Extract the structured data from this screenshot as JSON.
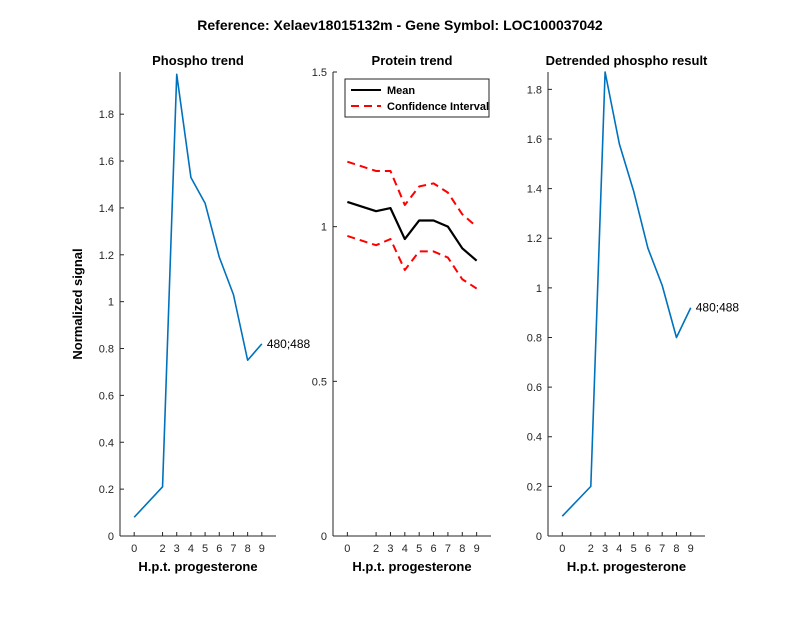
{
  "figure": {
    "suptitle": "Reference:  Xelaev18015132m - Gene Symbol:  LOC100037042"
  },
  "chart_data": [
    {
      "type": "line",
      "title": "Phospho trend",
      "xlabel": "H.p.t. progesterone",
      "ylabel": "Normalized signal",
      "categories": [
        "0",
        "2",
        "3",
        "4",
        "5",
        "6",
        "7",
        "8",
        "9"
      ],
      "xlim": [
        -1,
        10
      ],
      "ylim": [
        0,
        1.98
      ],
      "yticks": [
        0,
        0.2,
        0.4,
        0.6,
        0.8,
        1,
        1.2,
        1.4,
        1.6,
        1.8
      ],
      "ytick_labels": [
        "0",
        "0.2",
        "0.4",
        "0.6",
        "0.8",
        "1",
        "1.2",
        "1.4",
        "1.6",
        "1.8"
      ],
      "series": [
        {
          "name": "",
          "color": "#0072BD",
          "style": "solid",
          "values": [
            0.08,
            0.21,
            1.97,
            1.53,
            1.42,
            1.19,
            1.03,
            0.75,
            0.82
          ]
        }
      ],
      "annotation": {
        "text": "480;488"
      },
      "grid": false,
      "legend": null
    },
    {
      "type": "line",
      "title": "Protein trend",
      "xlabel": "H.p.t. progesterone",
      "ylabel": "",
      "categories": [
        "0",
        "2",
        "3",
        "4",
        "5",
        "6",
        "7",
        "8",
        "9"
      ],
      "xlim": [
        -1,
        10
      ],
      "ylim": [
        0,
        1.5
      ],
      "yticks": [
        0,
        0.5,
        1,
        1.5
      ],
      "ytick_labels": [
        "0",
        "0.5",
        "1",
        "1.5"
      ],
      "series": [
        {
          "name": "Mean",
          "color": "#000000",
          "style": "solid",
          "values": [
            1.08,
            1.05,
            1.06,
            0.96,
            1.02,
            1.02,
            1.0,
            0.93,
            0.89
          ]
        },
        {
          "name": "Confidence Interval",
          "color": "#FF0000",
          "style": "dashed",
          "values": [
            1.21,
            1.18,
            1.18,
            1.07,
            1.13,
            1.14,
            1.11,
            1.04,
            1.0
          ]
        },
        {
          "name": "",
          "color": "#FF0000",
          "style": "dashed",
          "values": [
            0.97,
            0.94,
            0.96,
            0.86,
            0.92,
            0.92,
            0.9,
            0.83,
            0.8
          ]
        }
      ],
      "grid": false,
      "legend": {
        "placement": "top-left",
        "entries": [
          "Mean",
          "Confidence Interval"
        ]
      }
    },
    {
      "type": "line",
      "title": "Detrended phospho result",
      "xlabel": "H.p.t. progesterone",
      "ylabel": "",
      "categories": [
        "0",
        "2",
        "3",
        "4",
        "5",
        "6",
        "7",
        "8",
        "9"
      ],
      "xlim": [
        -1,
        10
      ],
      "ylim": [
        0,
        1.87
      ],
      "yticks": [
        0,
        0.2,
        0.4,
        0.6,
        0.8,
        1,
        1.2,
        1.4,
        1.6,
        1.8
      ],
      "ytick_labels": [
        "0",
        "0.2",
        "0.4",
        "0.6",
        "0.8",
        "1",
        "1.2",
        "1.4",
        "1.6",
        "1.8"
      ],
      "series": [
        {
          "name": "",
          "color": "#0072BD",
          "style": "solid",
          "values": [
            0.08,
            0.2,
            1.87,
            1.58,
            1.39,
            1.16,
            1.01,
            0.8,
            0.92
          ]
        }
      ],
      "annotation": {
        "text": "480;488"
      },
      "grid": false,
      "legend": null
    }
  ]
}
